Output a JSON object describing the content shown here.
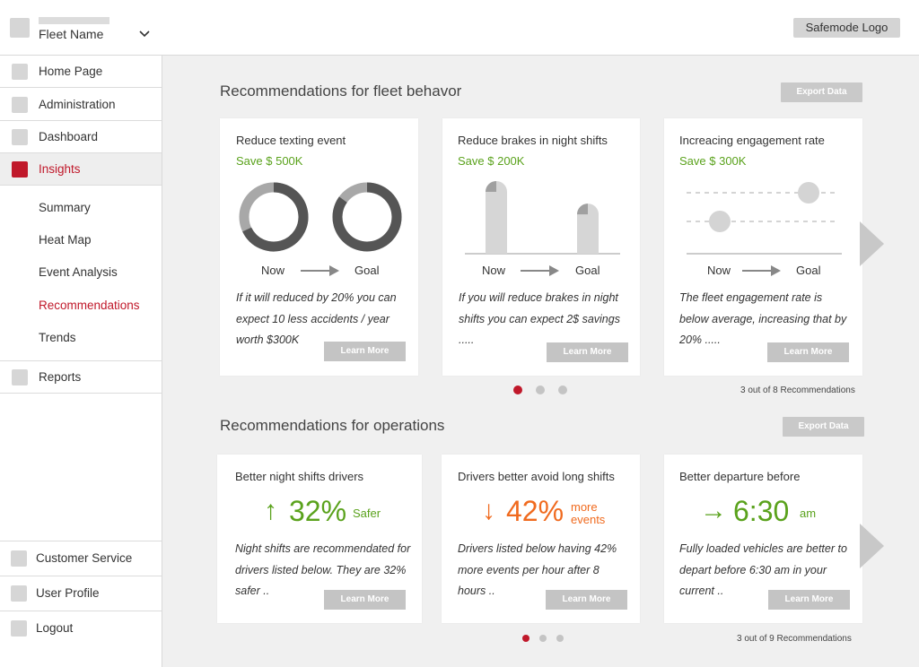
{
  "header": {
    "fleet_name": "Fleet Name",
    "logo": "Safemode Logo",
    "chevron_icon": "chevron-down-icon"
  },
  "sidebar": {
    "main_items": [
      {
        "label": "Home Page"
      },
      {
        "label": "Administration"
      },
      {
        "label": "Dashboard"
      },
      {
        "label": "Insights",
        "active": true
      },
      {
        "label": "Reports"
      }
    ],
    "sub_items": [
      {
        "label": "Summary"
      },
      {
        "label": "Heat Map"
      },
      {
        "label": "Event Analysis"
      },
      {
        "label": "Recommendations",
        "active": true
      },
      {
        "label": "Trends"
      }
    ],
    "bottom_items": [
      {
        "label": "Customer Service"
      },
      {
        "label": "User Profile"
      },
      {
        "label": "Logout"
      }
    ]
  },
  "fleet_section": {
    "title": "Recommendations for fleet behavor",
    "export_label": "Export Data",
    "count_text": "3 out of 8  Recommendations",
    "pagination": {
      "pages": 3,
      "active": 0
    },
    "now_label": "Now",
    "goal_label": "Goal",
    "cards": [
      {
        "title": "Reduce texting event",
        "save": "Save $ 500K",
        "description": "If it will reduced by 20% you can expect 10 less accidents / year worth $300K",
        "button": "Learn More",
        "visual": "donut",
        "now_value": 0.68,
        "goal_value": 0.85
      },
      {
        "title": "Reduce brakes in night shifts",
        "save": "Save $ 200K",
        "description": "If you will reduce brakes in night shifts you can expect 2$ savings .....",
        "button": "Learn More",
        "visual": "bars",
        "now_value": 1.0,
        "goal_value": 0.69
      },
      {
        "title": "Increacing engagement rate",
        "save": "Save $ 300K",
        "description": "The fleet engagement rate is below average, increasing that by 20%  .....",
        "button": "Learn More",
        "visual": "dot-levels",
        "now_value": "low",
        "goal_value": "high"
      }
    ]
  },
  "ops_section": {
    "title": "Recommendations for operations",
    "export_label": "Export Data",
    "count_text": "3 out of 9  Recommendations",
    "pagination": {
      "pages": 3,
      "active": 0
    },
    "cards": [
      {
        "title": "Better night shifts drivers",
        "arrow": "↑",
        "arrow_icon": "arrow-up-icon",
        "value": "32%",
        "unit": "Safer",
        "color": "#5aa21c",
        "description": "Night shifts are recommendated for drivers listed below. They are 32% safer ..",
        "button": "Learn More"
      },
      {
        "title": "Drivers better avoid long shifts",
        "arrow": "↓",
        "arrow_icon": "arrow-down-icon",
        "value": "42%",
        "unit": "more events",
        "color": "#f06a1e",
        "description": "Drivers listed below having 42% more events per hour after 8 hours ..",
        "button": "Learn More"
      },
      {
        "title": "Better departure before",
        "arrow": "→",
        "arrow_icon": "arrow-right-icon",
        "value": "6:30",
        "unit": "am",
        "color": "#5aa21c",
        "description": "Fully loaded vehicles are better to depart before 6:30 am in your current ..",
        "button": "Learn More"
      }
    ]
  }
}
